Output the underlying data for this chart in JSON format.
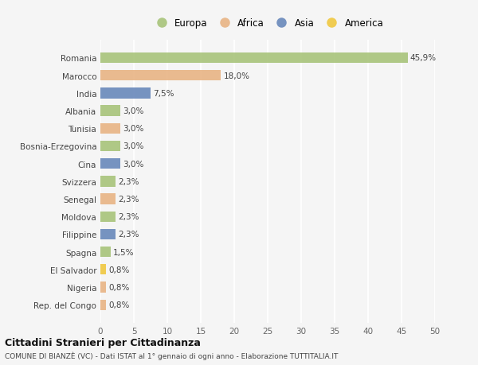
{
  "countries": [
    "Romania",
    "Marocco",
    "India",
    "Albania",
    "Tunisia",
    "Bosnia-Erzegovina",
    "Cina",
    "Svizzera",
    "Senegal",
    "Moldova",
    "Filippine",
    "Spagna",
    "El Salvador",
    "Nigeria",
    "Rep. del Congo"
  ],
  "values": [
    45.9,
    18.0,
    7.5,
    3.0,
    3.0,
    3.0,
    3.0,
    2.3,
    2.3,
    2.3,
    2.3,
    1.5,
    0.8,
    0.8,
    0.8
  ],
  "labels": [
    "45,9%",
    "18,0%",
    "7,5%",
    "3,0%",
    "3,0%",
    "3,0%",
    "3,0%",
    "2,3%",
    "2,3%",
    "2,3%",
    "2,3%",
    "1,5%",
    "0,8%",
    "0,8%",
    "0,8%"
  ],
  "continents": [
    "Europa",
    "Africa",
    "Asia",
    "Europa",
    "Africa",
    "Europa",
    "Asia",
    "Europa",
    "Africa",
    "Europa",
    "Asia",
    "Europa",
    "America",
    "Africa",
    "Africa"
  ],
  "colors": {
    "Europa": "#a8c47a",
    "Africa": "#e8b484",
    "Asia": "#6888bb",
    "America": "#f0c840"
  },
  "xlim": [
    0,
    50
  ],
  "xticks": [
    0,
    5,
    10,
    15,
    20,
    25,
    30,
    35,
    40,
    45,
    50
  ],
  "title": "Cittadini Stranieri per Cittadinanza",
  "subtitle": "COMUNE DI BIANZÈ (VC) - Dati ISTAT al 1° gennaio di ogni anno - Elaborazione TUTTITALIA.IT",
  "background_color": "#f5f5f5",
  "grid_color": "#ffffff",
  "legend_order": [
    "Europa",
    "Africa",
    "Asia",
    "America"
  ]
}
